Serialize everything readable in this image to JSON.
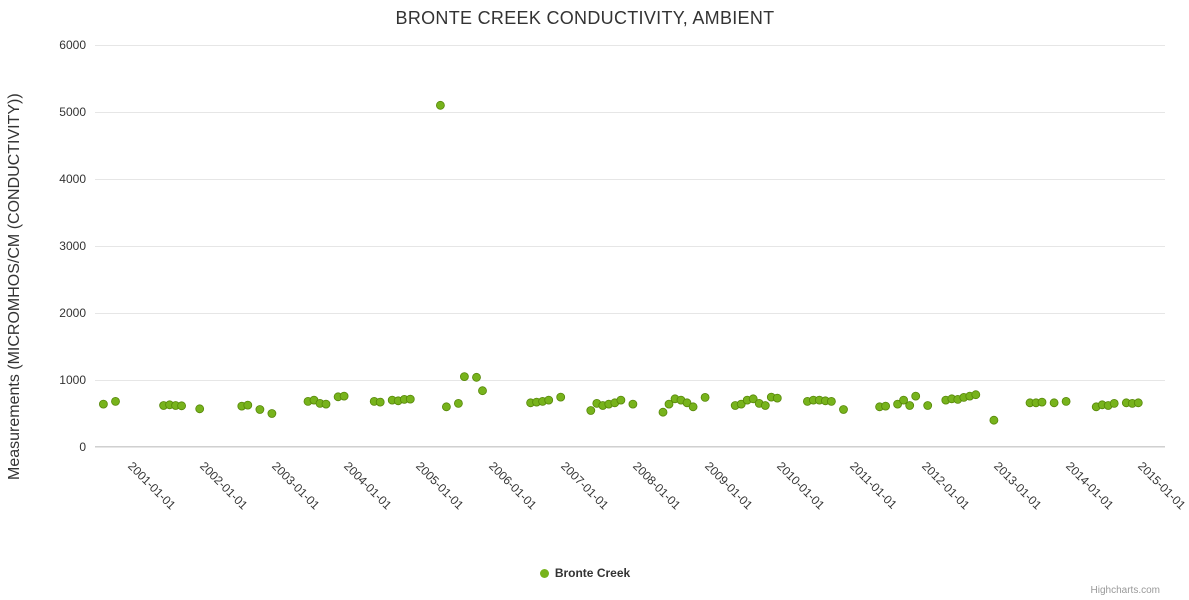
{
  "credits": "Highcharts.com",
  "chart_data": {
    "type": "scatter",
    "title": "BRONTE CREEK CONDUCTIVITY, AMBIENT",
    "xlabel": "",
    "ylabel": "Measurements (MICROMHOS/CM (CONDUCTIVITY))",
    "ylim": [
      0,
      6000
    ],
    "y_ticks": [
      0,
      1000,
      2000,
      3000,
      4000,
      5000,
      6000
    ],
    "xlim_decimal_years": [
      2000.3,
      2015.12
    ],
    "x_ticks": [
      {
        "year": 2001,
        "label": "2001-01-01"
      },
      {
        "year": 2002,
        "label": "2002-01-01"
      },
      {
        "year": 2003,
        "label": "2003-01-01"
      },
      {
        "year": 2004,
        "label": "2004-01-01"
      },
      {
        "year": 2005,
        "label": "2005-01-01"
      },
      {
        "year": 2006,
        "label": "2006-01-01"
      },
      {
        "year": 2007,
        "label": "2007-01-01"
      },
      {
        "year": 2008,
        "label": "2008-01-01"
      },
      {
        "year": 2009,
        "label": "2009-01-01"
      },
      {
        "year": 2010,
        "label": "2010-01-01"
      },
      {
        "year": 2011,
        "label": "2011-01-01"
      },
      {
        "year": 2012,
        "label": "2012-01-01"
      },
      {
        "year": 2013,
        "label": "2013-01-01"
      },
      {
        "year": 2014,
        "label": "2014-01-01"
      },
      {
        "year": 2015,
        "label": "2015-01-01"
      }
    ],
    "grid": true,
    "legend_position": "bottom-center",
    "colors": {
      "point_fill": "#77b31c",
      "point_stroke": "#568708",
      "gridline": "#e6e6e6",
      "axis_line": "#d0d0d0",
      "title_text": "#333333",
      "tick_text": "#333333"
    },
    "series": [
      {
        "name": "Bronte Creek",
        "color": "#77b31c",
        "points": [
          [
            "2000-06",
            640
          ],
          [
            "2000-08",
            680
          ],
          [
            "2001-04",
            620
          ],
          [
            "2001-05",
            630
          ],
          [
            "2001-06",
            620
          ],
          [
            "2001-07",
            615
          ],
          [
            "2001-10",
            570
          ],
          [
            "2002-05",
            610
          ],
          [
            "2002-06",
            625
          ],
          [
            "2002-08",
            560
          ],
          [
            "2002-10",
            500
          ],
          [
            "2003-04",
            680
          ],
          [
            "2003-05",
            700
          ],
          [
            "2003-06",
            650
          ],
          [
            "2003-07",
            640
          ],
          [
            "2003-09",
            750
          ],
          [
            "2003-10",
            760
          ],
          [
            "2004-03",
            680
          ],
          [
            "2004-04",
            670
          ],
          [
            "2004-06",
            700
          ],
          [
            "2004-07",
            690
          ],
          [
            "2004-08",
            710
          ],
          [
            "2004-09",
            715
          ],
          [
            "2005-02",
            5100
          ],
          [
            "2005-03",
            600
          ],
          [
            "2005-05",
            650
          ],
          [
            "2005-06",
            1050
          ],
          [
            "2005-08",
            1040
          ],
          [
            "2005-09",
            840
          ],
          [
            "2006-05",
            660
          ],
          [
            "2006-06",
            670
          ],
          [
            "2006-07",
            680
          ],
          [
            "2006-08",
            700
          ],
          [
            "2006-10",
            745
          ],
          [
            "2007-03",
            545
          ],
          [
            "2007-04",
            650
          ],
          [
            "2007-05",
            620
          ],
          [
            "2007-06",
            640
          ],
          [
            "2007-07",
            660
          ],
          [
            "2007-08",
            700
          ],
          [
            "2007-10",
            640
          ],
          [
            "2008-03",
            520
          ],
          [
            "2008-04",
            640
          ],
          [
            "2008-05",
            720
          ],
          [
            "2008-06",
            700
          ],
          [
            "2008-07",
            660
          ],
          [
            "2008-08",
            600
          ],
          [
            "2008-10",
            740
          ],
          [
            "2009-03",
            620
          ],
          [
            "2009-04",
            640
          ],
          [
            "2009-05",
            700
          ],
          [
            "2009-06",
            720
          ],
          [
            "2009-07",
            650
          ],
          [
            "2009-08",
            620
          ],
          [
            "2009-09",
            745
          ],
          [
            "2009-10",
            730
          ],
          [
            "2010-03",
            680
          ],
          [
            "2010-04",
            700
          ],
          [
            "2010-05",
            700
          ],
          [
            "2010-06",
            690
          ],
          [
            "2010-07",
            680
          ],
          [
            "2010-09",
            560
          ],
          [
            "2011-03",
            600
          ],
          [
            "2011-04",
            610
          ],
          [
            "2011-06",
            640
          ],
          [
            "2011-07",
            700
          ],
          [
            "2011-08",
            620
          ],
          [
            "2011-09",
            760
          ],
          [
            "2011-11",
            620
          ],
          [
            "2012-02",
            700
          ],
          [
            "2012-03",
            720
          ],
          [
            "2012-04",
            710
          ],
          [
            "2012-05",
            740
          ],
          [
            "2012-06",
            760
          ],
          [
            "2012-07",
            780
          ],
          [
            "2012-10",
            400
          ],
          [
            "2013-04",
            660
          ],
          [
            "2013-05",
            660
          ],
          [
            "2013-06",
            670
          ],
          [
            "2013-08",
            660
          ],
          [
            "2013-10",
            680
          ],
          [
            "2014-03",
            600
          ],
          [
            "2014-04",
            630
          ],
          [
            "2014-05",
            620
          ],
          [
            "2014-06",
            650
          ],
          [
            "2014-08",
            660
          ],
          [
            "2014-09",
            650
          ],
          [
            "2014-10",
            660
          ]
        ]
      }
    ]
  }
}
